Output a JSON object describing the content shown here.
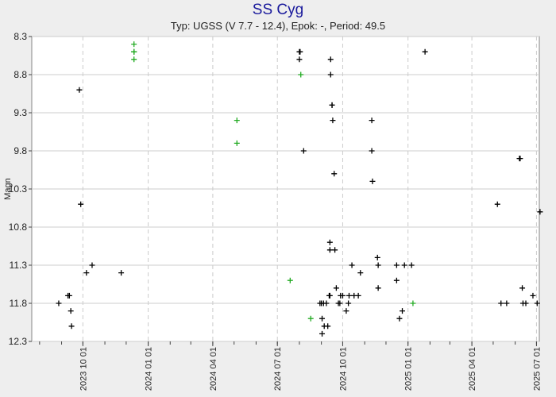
{
  "header": {
    "title": "SS Cyg",
    "subtitle": "Typ: UGSS (V 7.7 - 12.4), Epok: -, Period: 49.5"
  },
  "colors": {
    "visual_black": "#000000",
    "visual_green": "#22aa22",
    "title": "#1a1a9c",
    "grid": "#cccccc",
    "background": "#eeeeee"
  },
  "chart_data": {
    "type": "scatter",
    "title": "SS Cyg",
    "subtitle": "Typ: UGSS (V 7.7 - 12.4), Epok: -, Period: 49.5",
    "xlabel": "",
    "ylabel": "Magn",
    "y_inverted": true,
    "ylim": [
      8.3,
      12.3
    ],
    "xlim": [
      "2023-07-21",
      "2025-07-05"
    ],
    "yticks": [
      "8.3",
      "8.8",
      "9.3",
      "9.8",
      "10.3",
      "10.8",
      "11.3",
      "11.8",
      "12.3"
    ],
    "xticks": [
      "2023 10 01",
      "2024 01 01",
      "2024 04 01",
      "2024 07 01",
      "2024 10 01",
      "2025 01 01",
      "2025 04 01",
      "2025 07 01"
    ],
    "grid": true,
    "series": [
      {
        "color": "#000000",
        "points": [
          [
            "2023-08-28",
            11.8
          ],
          [
            "2023-09-10",
            11.7
          ],
          [
            "2023-09-12",
            11.7
          ],
          [
            "2023-09-14",
            11.9
          ],
          [
            "2023-09-15",
            12.1
          ],
          [
            "2023-09-26",
            9.0
          ],
          [
            "2023-09-28",
            10.5
          ],
          [
            "2023-10-06",
            11.4
          ],
          [
            "2023-10-14",
            11.3
          ],
          [
            "2023-11-24",
            11.4
          ],
          [
            "2024-08-01",
            8.5
          ],
          [
            "2024-08-01",
            8.6
          ],
          [
            "2024-08-02",
            8.5
          ],
          [
            "2024-08-07",
            9.8
          ],
          [
            "2024-08-30",
            11.8
          ],
          [
            "2024-09-01",
            11.8
          ],
          [
            "2024-09-02",
            12.0
          ],
          [
            "2024-09-02",
            12.2
          ],
          [
            "2024-09-04",
            11.8
          ],
          [
            "2024-09-05",
            12.1
          ],
          [
            "2024-09-08",
            11.8
          ],
          [
            "2024-09-10",
            12.1
          ],
          [
            "2024-09-12",
            11.7
          ],
          [
            "2024-09-13",
            11.7
          ],
          [
            "2024-09-13",
            11.0
          ],
          [
            "2024-09-13",
            11.1
          ],
          [
            "2024-09-14",
            8.6
          ],
          [
            "2024-09-14",
            8.8
          ],
          [
            "2024-09-16",
            9.2
          ],
          [
            "2024-09-16",
            9.2
          ],
          [
            "2024-09-17",
            9.4
          ],
          [
            "2024-09-19",
            10.1
          ],
          [
            "2024-09-20",
            11.1
          ],
          [
            "2024-09-22",
            11.6
          ],
          [
            "2024-09-25",
            11.8
          ],
          [
            "2024-09-27",
            11.8
          ],
          [
            "2024-09-28",
            11.7
          ],
          [
            "2024-10-01",
            11.7
          ],
          [
            "2024-10-06",
            11.9
          ],
          [
            "2024-10-09",
            11.8
          ],
          [
            "2024-10-10",
            11.7
          ],
          [
            "2024-10-14",
            11.3
          ],
          [
            "2024-10-17",
            11.7
          ],
          [
            "2024-10-23",
            11.7
          ],
          [
            "2024-10-26",
            11.4
          ],
          [
            "2024-11-11",
            9.4
          ],
          [
            "2024-11-11",
            9.8
          ],
          [
            "2024-11-12",
            10.2
          ],
          [
            "2024-11-19",
            11.2
          ],
          [
            "2024-11-20",
            11.3
          ],
          [
            "2024-11-20",
            11.6
          ],
          [
            "2024-12-16",
            11.3
          ],
          [
            "2024-12-16",
            11.5
          ],
          [
            "2024-12-20",
            12.0
          ],
          [
            "2024-12-24",
            11.9
          ],
          [
            "2024-12-27",
            11.3
          ],
          [
            "2025-01-06",
            11.3
          ],
          [
            "2025-01-25",
            8.5
          ],
          [
            "2025-05-07",
            10.5
          ],
          [
            "2025-05-12",
            11.8
          ],
          [
            "2025-05-20",
            11.8
          ],
          [
            "2025-06-07",
            9.9
          ],
          [
            "2025-06-08",
            9.9
          ],
          [
            "2025-06-11",
            11.6
          ],
          [
            "2025-06-12",
            11.8
          ],
          [
            "2025-06-16",
            11.8
          ],
          [
            "2025-06-26",
            11.7
          ],
          [
            "2025-07-02",
            11.8
          ],
          [
            "2025-07-06",
            10.6
          ]
        ]
      },
      {
        "color": "#22aa22",
        "points": [
          [
            "2023-12-12",
            8.4
          ],
          [
            "2023-12-12",
            8.5
          ],
          [
            "2023-12-12",
            8.5
          ],
          [
            "2023-12-12",
            8.5
          ],
          [
            "2023-12-12",
            8.6
          ],
          [
            "2024-05-05",
            9.4
          ],
          [
            "2024-05-05",
            9.7
          ],
          [
            "2024-07-19",
            11.5
          ],
          [
            "2024-08-03",
            8.8
          ],
          [
            "2024-08-17",
            12.0
          ],
          [
            "2025-01-08",
            11.8
          ]
        ]
      }
    ]
  }
}
